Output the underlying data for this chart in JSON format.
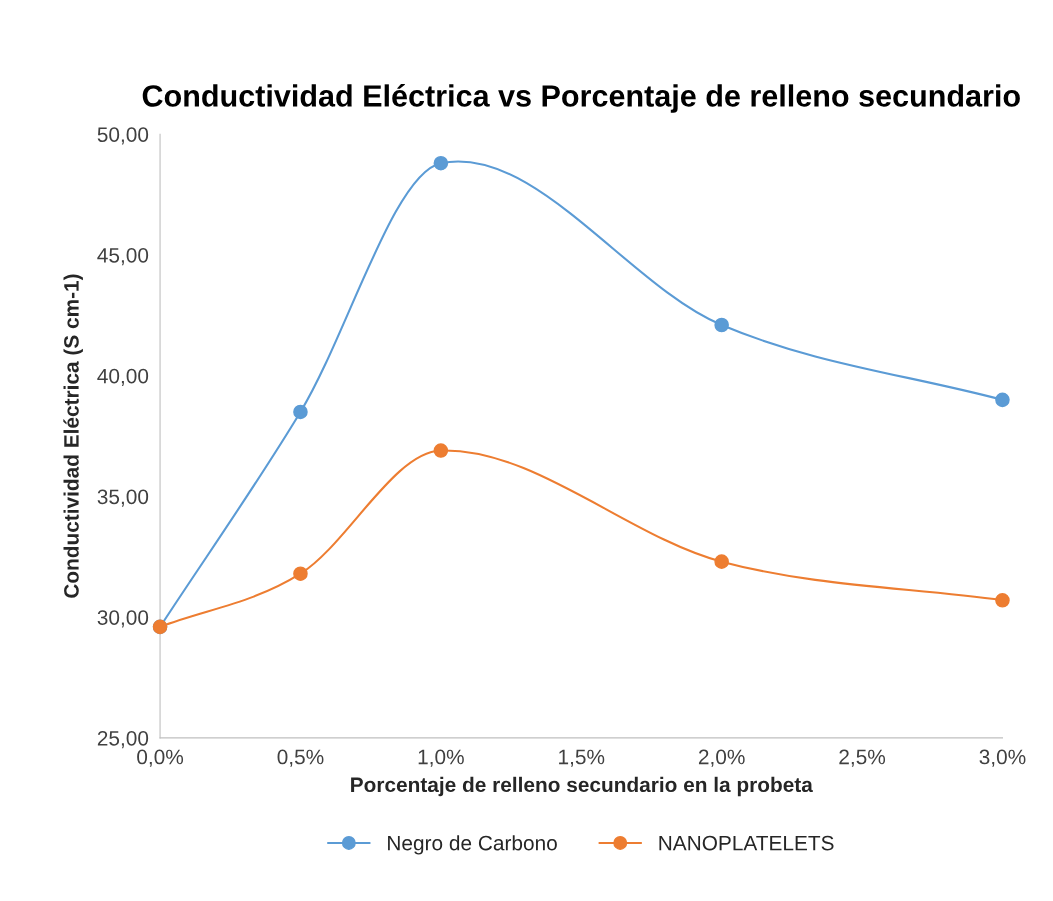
{
  "chart_data": {
    "type": "line",
    "title": "Conductividad Eléctrica vs Porcentaje de relleno secundario",
    "xlabel": "Porcentaje de relleno secundario en la probeta",
    "ylabel": "Conductividad Eléctrica (S cm-1)",
    "x": [
      0,
      0.5,
      1.0,
      2.0,
      3.0
    ],
    "series": [
      {
        "name": "Negro de Carbono",
        "color": "#5b9bd5",
        "values": [
          29.6,
          38.5,
          48.8,
          42.1,
          39.0
        ]
      },
      {
        "name": "NANOPLATELETS",
        "color": "#ed7d31",
        "values": [
          29.6,
          31.8,
          36.9,
          32.3,
          30.7
        ]
      }
    ],
    "xlim": [
      0,
      3.0
    ],
    "xticks": [
      {
        "value": 0,
        "label": "0,0%"
      },
      {
        "value": 0.5,
        "label": "0,5%"
      },
      {
        "value": 1.0,
        "label": "1,0%"
      },
      {
        "value": 1.5,
        "label": "1,5%"
      },
      {
        "value": 2.0,
        "label": "2,0%"
      },
      {
        "value": 2.5,
        "label": "2,5%"
      },
      {
        "value": 3.0,
        "label": "3,0%"
      }
    ],
    "ylim": [
      25,
      50
    ],
    "yticks": [
      {
        "value": 25,
        "label": "25,00"
      },
      {
        "value": 30,
        "label": "30,00"
      },
      {
        "value": 35,
        "label": "35,00"
      },
      {
        "value": 40,
        "label": "40,00"
      },
      {
        "value": 45,
        "label": "45,00"
      },
      {
        "value": 50,
        "label": "50,00"
      }
    ],
    "grid": false,
    "legend": "bottom",
    "marker": "circle",
    "line_style": "solid"
  }
}
